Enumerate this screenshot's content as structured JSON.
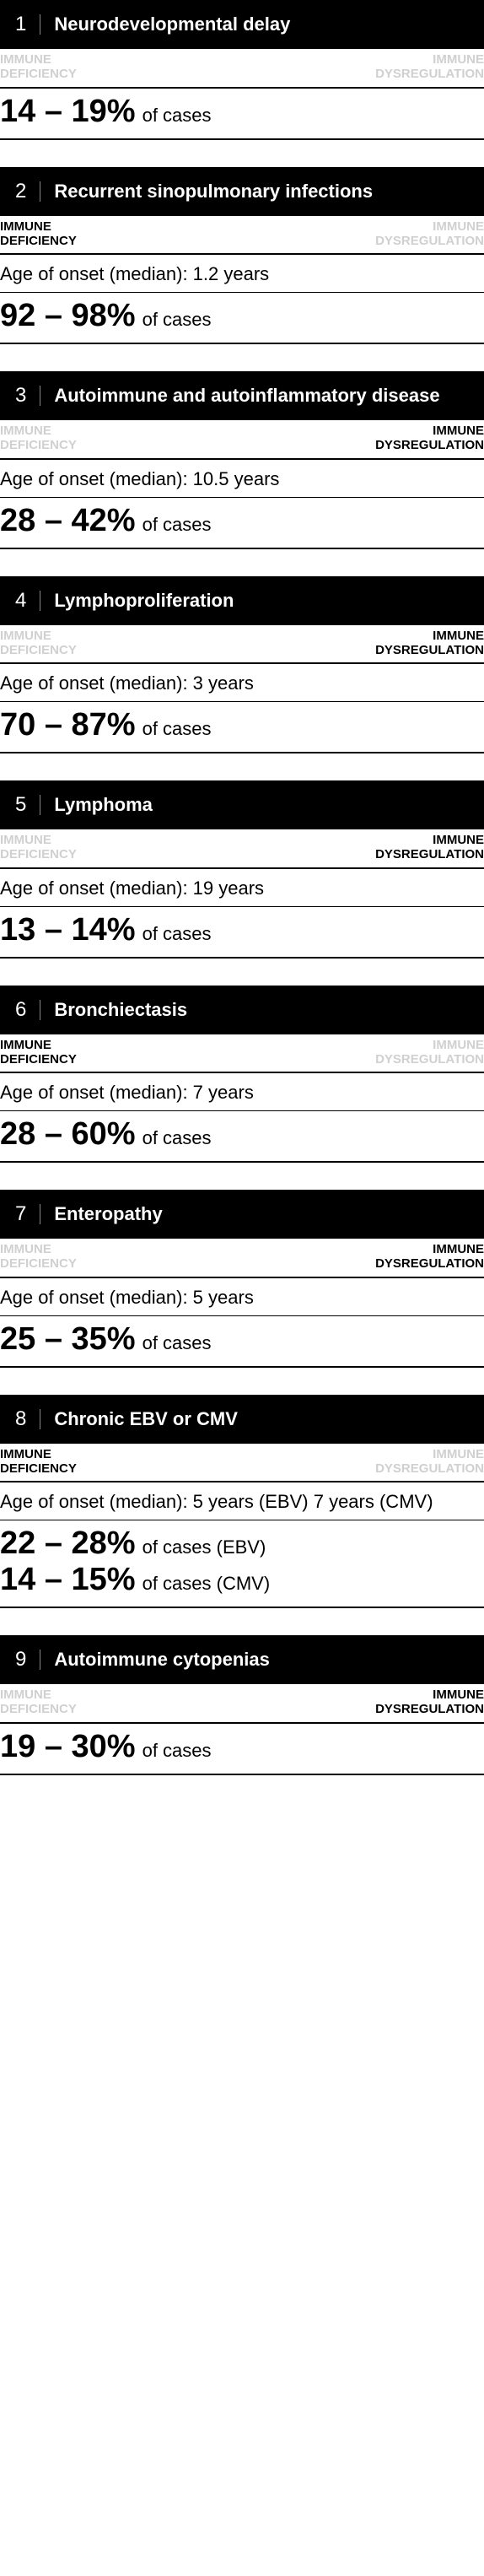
{
  "tag_deficiency_l1": "IMMUNE",
  "tag_deficiency_l2": "DEFICIENCY",
  "tag_dysregulation_l1": "IMMUNE",
  "tag_dysregulation_l2": "DYSREGULATION",
  "of_cases": "of cases",
  "colors": {
    "header_bg": "#000000",
    "header_text": "#ffffff",
    "tag_active": "#000000",
    "tag_inactive": "#d0d0d0",
    "rule": "#000000",
    "body_text": "#000000",
    "background": "#ffffff"
  },
  "typography": {
    "header_num_fontsize": 24,
    "header_title_fontsize": 22,
    "tag_fontsize": 15,
    "onset_fontsize": 22,
    "pct_fontsize": 38,
    "suffix_fontsize": 22
  },
  "cards": [
    {
      "num": "1",
      "title": "Neurodevelopmental delay",
      "deficiency_active": false,
      "dysregulation_active": false,
      "onset": null,
      "cases": [
        {
          "pct": "14 – 19%",
          "suffix": "of cases"
        }
      ]
    },
    {
      "num": "2",
      "title": "Recurrent sinopulmonary infections",
      "deficiency_active": true,
      "dysregulation_active": false,
      "onset": "Age of onset (median): 1.2 years",
      "cases": [
        {
          "pct": "92 – 98%",
          "suffix": "of cases"
        }
      ]
    },
    {
      "num": "3",
      "title": "Autoimmune and autoinflammatory disease",
      "deficiency_active": false,
      "dysregulation_active": true,
      "onset": "Age of onset (median): 10.5 years",
      "cases": [
        {
          "pct": "28 – 42%",
          "suffix": "of cases"
        }
      ]
    },
    {
      "num": "4",
      "title": "Lymphoproliferation",
      "deficiency_active": false,
      "dysregulation_active": true,
      "onset": "Age of onset (median): 3 years",
      "cases": [
        {
          "pct": "70 – 87%",
          "suffix": "of cases"
        }
      ]
    },
    {
      "num": "5",
      "title": "Lymphoma",
      "deficiency_active": false,
      "dysregulation_active": true,
      "onset": "Age of onset (median): 19 years",
      "cases": [
        {
          "pct": "13 – 14%",
          "suffix": "of cases"
        }
      ]
    },
    {
      "num": "6",
      "title": "Bronchiectasis",
      "deficiency_active": true,
      "dysregulation_active": false,
      "onset": "Age of onset (median): 7 years",
      "cases": [
        {
          "pct": "28 – 60%",
          "suffix": "of cases"
        }
      ]
    },
    {
      "num": "7",
      "title": "Enteropathy",
      "deficiency_active": false,
      "dysregulation_active": true,
      "onset": "Age of onset (median): 5 years",
      "cases": [
        {
          "pct": "25 – 35%",
          "suffix": "of cases"
        }
      ]
    },
    {
      "num": "8",
      "title": "Chronic EBV or CMV",
      "deficiency_active": true,
      "dysregulation_active": false,
      "onset": "Age of onset (median): 5 years (EBV) 7 years (CMV)",
      "cases": [
        {
          "pct": "22 – 28%",
          "suffix": "of cases (EBV)"
        },
        {
          "pct": "14 – 15%",
          "suffix": "of cases (CMV)"
        }
      ]
    },
    {
      "num": "9",
      "title": "Autoimmune cytopenias",
      "deficiency_active": false,
      "dysregulation_active": true,
      "onset": null,
      "cases": [
        {
          "pct": "19 – 30%",
          "suffix": "of cases"
        }
      ]
    }
  ]
}
